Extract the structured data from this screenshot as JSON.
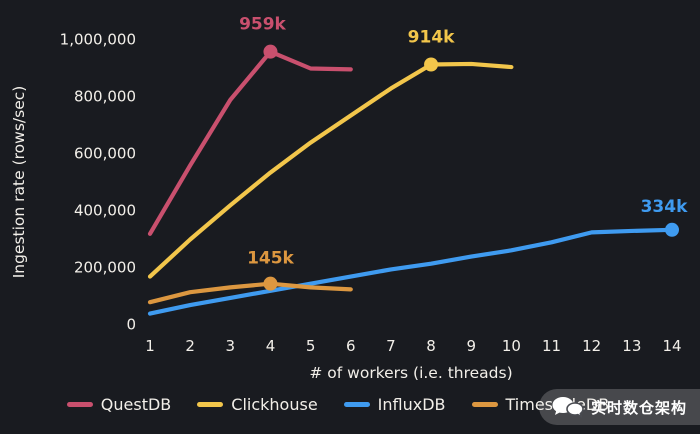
{
  "colors": {
    "background": "#191b20",
    "text": "#f2efe9"
  },
  "chart_data": {
    "type": "line",
    "title": "",
    "xlabel": "# of workers (i.e. threads)",
    "ylabel": "Ingestion rate (rows/sec)",
    "x_ticks": [
      1,
      2,
      3,
      4,
      5,
      6,
      7,
      8,
      9,
      10,
      11,
      12,
      13,
      14
    ],
    "y_tick_values": [
      0,
      200000,
      400000,
      600000,
      800000,
      1000000
    ],
    "y_tick_labels": [
      "0",
      "200,000",
      "400,000",
      "600,000",
      "800,000",
      "1,000,000"
    ],
    "xlim": [
      1,
      14
    ],
    "ylim": [
      0,
      1000000
    ],
    "grid": false,
    "legend_position": "bottom",
    "series": [
      {
        "name": "QuestDB",
        "color": "#c9506e",
        "x": [
          1,
          2,
          3,
          4,
          5,
          6
        ],
        "values": [
          320000,
          560000,
          790000,
          959000,
          900000,
          897000
        ],
        "marker_point": {
          "x": 4,
          "value": 959000
        },
        "annotation": {
          "label": "959k",
          "x": 4,
          "value": 959000,
          "dx": -8,
          "dy": -22
        }
      },
      {
        "name": "Clickhouse",
        "color": "#f2c64b",
        "x": [
          1,
          2,
          3,
          4,
          5,
          6,
          7,
          8,
          9,
          10
        ],
        "values": [
          170000,
          300000,
          420000,
          535000,
          640000,
          735000,
          830000,
          914000,
          916000,
          905000
        ],
        "marker_point": {
          "x": 8,
          "value": 914000
        },
        "annotation": {
          "label": "914k",
          "x": 8,
          "value": 914000,
          "dx": 0,
          "dy": -22
        }
      },
      {
        "name": "InfluxDB",
        "color": "#3f9bf0",
        "x": [
          1,
          2,
          3,
          4,
          5,
          6,
          7,
          8,
          9,
          10,
          11,
          12,
          13,
          14
        ],
        "values": [
          40000,
          70000,
          95000,
          120000,
          145000,
          170000,
          195000,
          215000,
          240000,
          262000,
          290000,
          325000,
          330000,
          334000
        ],
        "marker_point": {
          "x": 14,
          "value": 334000
        },
        "annotation": {
          "label": "334k",
          "x": 14,
          "value": 334000,
          "dx": -8,
          "dy": -18
        }
      },
      {
        "name": "TimescaleDB",
        "color": "#dc9740",
        "x": [
          1,
          2,
          3,
          4,
          5,
          6
        ],
        "values": [
          80000,
          115000,
          132000,
          145000,
          132000,
          125000
        ],
        "marker_point": {
          "x": 4,
          "value": 145000
        },
        "annotation": {
          "label": "145k",
          "x": 4,
          "value": 145000,
          "dx": 0,
          "dy": -20
        }
      }
    ]
  },
  "watermark": {
    "text": "实时数仓架构"
  }
}
